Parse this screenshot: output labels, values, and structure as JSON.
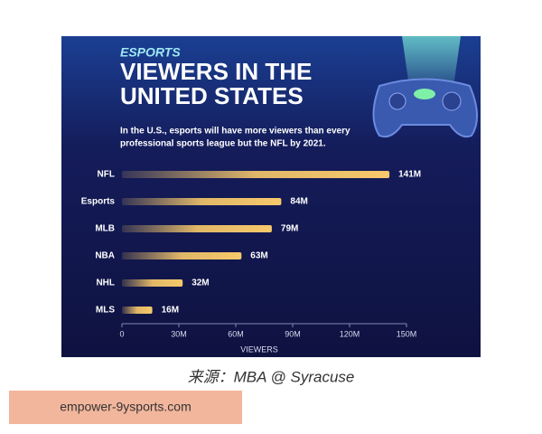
{
  "chart_data": {
    "type": "bar",
    "orientation": "horizontal",
    "kicker": "ESPORTS",
    "title_lines": [
      "VIEWERS IN THE",
      "UNITED STATES"
    ],
    "subtitle_lines": [
      "In the U.S., esports will have more viewers than every",
      "professional sports league but the NFL by 2021."
    ],
    "categories": [
      "NFL",
      "Esports",
      "MLB",
      "NBA",
      "NHL",
      "MLS"
    ],
    "values": [
      141,
      84,
      79,
      63,
      32,
      16
    ],
    "value_labels": [
      "141M",
      "84M",
      "79M",
      "63M",
      "32M",
      "16M"
    ],
    "color": "#f7c96b",
    "xlim": [
      0,
      150
    ],
    "xticks": [
      0,
      {
        "value": 30,
        "label": "30M"
      },
      {
        "value": 60,
        "label": "60M"
      },
      {
        "value": 90,
        "label": "90M"
      },
      {
        "value": 120,
        "label": "120M"
      },
      {
        "value": 150,
        "label": "150M"
      }
    ],
    "xlabel": "VIEWERS"
  },
  "caption": "来源：MBA @ Syracuse",
  "watermark": "empower-9ysports.com"
}
